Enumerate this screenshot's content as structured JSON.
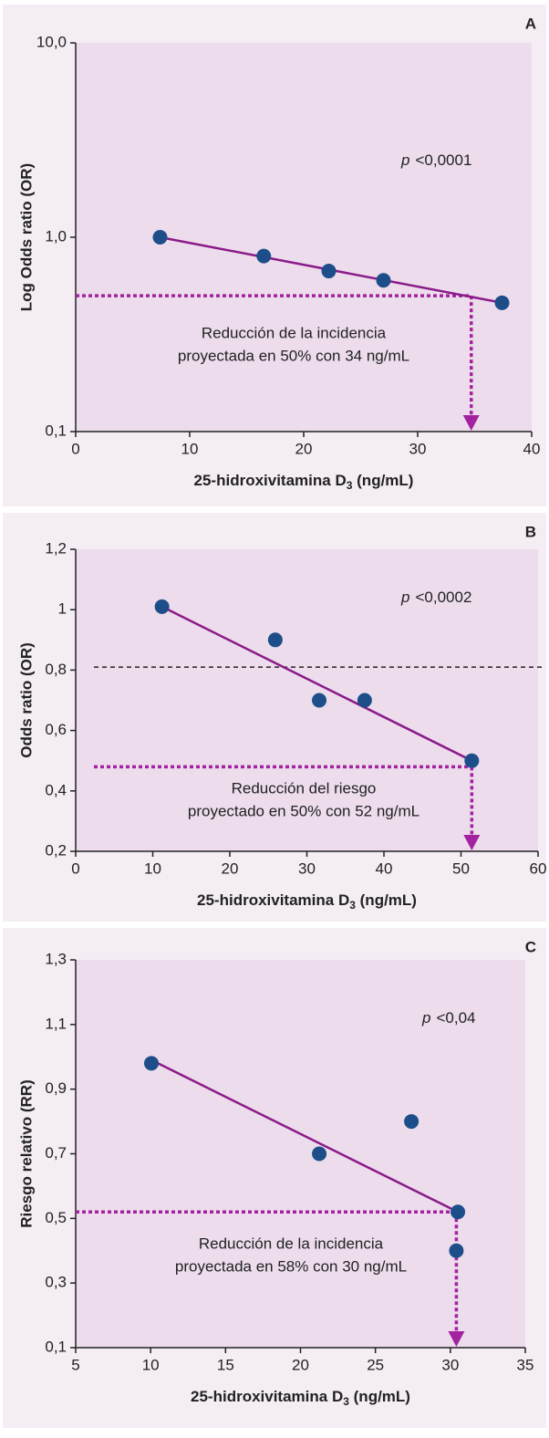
{
  "chart_data": [
    {
      "type": "scatter",
      "panel_label": "A",
      "log_y": true,
      "x_label": "25-hidroxivitamina D",
      "x_label_sub": "3",
      "x_label_suffix": " (ng/mL)",
      "y_label": "Log Odds ratio (OR)",
      "p_symbol": "p",
      "p_text": "<0,0001",
      "note_lines": [
        "Reducción de la incidencia",
        "proyectada en 50% con 34 ng/mL"
      ],
      "x": [
        7.4,
        16.5,
        22.2,
        27.0,
        37.4
      ],
      "values": [
        1.0,
        0.8,
        0.67,
        0.6,
        0.46
      ],
      "color": "#1d4e89",
      "trend": {
        "x": [
          7.4,
          37.4
        ],
        "values": [
          1.0,
          0.46
        ],
        "color": "#8b1a89"
      },
      "threshold": {
        "value": 0.5,
        "x": 34.7,
        "color": "#a3229f"
      },
      "xlim": [
        0,
        40
      ],
      "xticks": [
        0,
        10,
        20,
        30,
        40
      ],
      "ylim": [
        0.1,
        10
      ],
      "yticks": [
        {
          "value": 0.1,
          "label": "0,1"
        },
        {
          "value": 1,
          "label": "1,0"
        },
        {
          "value": 10,
          "label": "10,0"
        }
      ]
    },
    {
      "type": "scatter",
      "panel_label": "B",
      "log_y": false,
      "x_label": "25-hidroxivitamina D",
      "x_label_sub": "3",
      "x_label_suffix": " (ng/mL)",
      "y_label": "Odds ratio (OR)",
      "p_symbol": "p",
      "p_text": "<0,0002",
      "note_lines": [
        "Reducción del riesgo",
        "proyectado en 50% con 52 ng/mL"
      ],
      "x": [
        11.2,
        25.9,
        31.6,
        37.5,
        51.4
      ],
      "values": [
        1.01,
        0.9,
        0.7,
        0.7,
        0.5
      ],
      "color": "#1d4e89",
      "trend": {
        "x": [
          11.2,
          51.4
        ],
        "values": [
          1.01,
          0.5
        ],
        "color": "#8b1a89"
      },
      "threshold": {
        "value": 0.48,
        "x": 51.4,
        "color": "#a3229f"
      },
      "reference_line": 0.81,
      "xlim": [
        0,
        60
      ],
      "xticks": [
        0,
        10,
        20,
        30,
        40,
        50,
        60
      ],
      "ylim": [
        0.2,
        1.2
      ],
      "yticks": [
        {
          "value": 0.2,
          "label": "0,2"
        },
        {
          "value": 0.4,
          "label": "0,4"
        },
        {
          "value": 0.6,
          "label": "0,6"
        },
        {
          "value": 0.8,
          "label": "0,8"
        },
        1,
        {
          "value": 1.2,
          "label": "1,2"
        }
      ]
    },
    {
      "type": "scatter",
      "panel_label": "C",
      "log_y": false,
      "x_label": "25-hidroxivitamina D",
      "x_label_sub": "3",
      "x_label_suffix": " (ng/mL)",
      "y_label": "Riesgo relativo (RR)",
      "p_symbol": "p",
      "p_text": "<0,04",
      "note_lines": [
        "Reducción de la incidencia",
        "proyectada en 58% con 30 ng/mL"
      ],
      "x": [
        10.05,
        21.25,
        27.4,
        30.5,
        30.4
      ],
      "values": [
        0.98,
        0.7,
        0.8,
        0.52,
        0.4
      ],
      "color": "#1d4e89",
      "trend": {
        "x": [
          10.05,
          30.5
        ],
        "values": [
          0.99,
          0.52
        ],
        "color": "#8b1a89"
      },
      "threshold": {
        "value": 0.52,
        "x": 30.4,
        "color": "#a3229f"
      },
      "xlim": [
        5,
        35
      ],
      "xticks": [
        5,
        10,
        15,
        20,
        25,
        30,
        35
      ],
      "ylim": [
        0.1,
        1.3
      ],
      "yticks": [
        {
          "value": 0.1,
          "label": "0,1"
        },
        {
          "value": 0.3,
          "label": "0,3"
        },
        {
          "value": 0.5,
          "label": "0,5"
        },
        {
          "value": 0.7,
          "label": "0,7"
        },
        {
          "value": 0.9,
          "label": "0,9"
        },
        {
          "value": 1.1,
          "label": "1,1"
        },
        {
          "value": 1.3,
          "label": "1,3"
        }
      ]
    }
  ]
}
